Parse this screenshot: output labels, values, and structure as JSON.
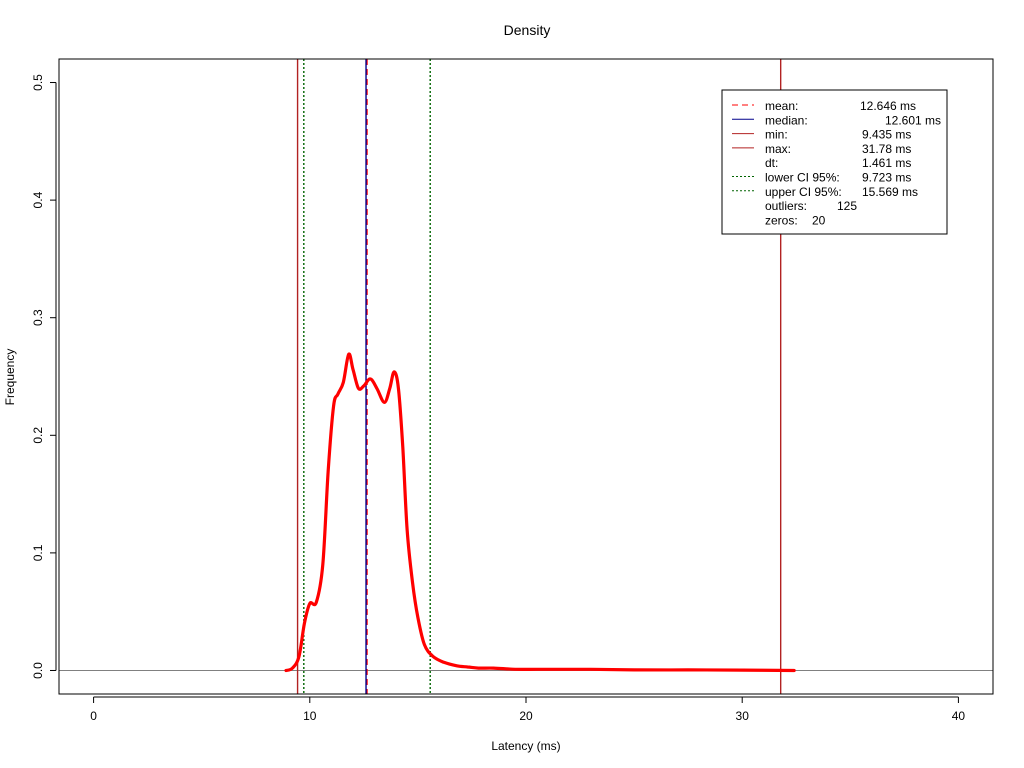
{
  "chart_data": {
    "type": "line",
    "title": "Density",
    "xlabel": "Latency (ms)",
    "ylabel": "Frequency",
    "xlim": [
      -1.6,
      41.6
    ],
    "ylim": [
      -0.02,
      0.52
    ],
    "xticks": [
      0,
      10,
      20,
      30,
      40
    ],
    "yticks": [
      0.0,
      0.1,
      0.2,
      0.3,
      0.4,
      0.5
    ],
    "xtick_labels": [
      "0",
      "10",
      "20",
      "30",
      "40"
    ],
    "ytick_labels": [
      "0.0",
      "0.1",
      "0.2",
      "0.3",
      "0.4",
      "0.5"
    ],
    "grid": false,
    "baseline_y": 0,
    "series": [
      {
        "color": "#ff0000",
        "x": [
          8.9,
          9.2,
          9.5,
          9.75,
          10.0,
          10.3,
          10.6,
          10.85,
          11.1,
          11.3,
          11.55,
          11.8,
          12.0,
          12.25,
          12.5,
          12.8,
          13.1,
          13.45,
          13.7,
          13.9,
          14.1,
          14.3,
          14.5,
          14.75,
          15.0,
          15.3,
          15.7,
          16.2,
          16.8,
          17.3,
          17.8,
          18.5,
          19.5,
          20.5,
          21.5,
          23.0,
          25.0,
          27.5,
          30.0,
          32.4
        ],
        "y": [
          0.0,
          0.002,
          0.012,
          0.04,
          0.057,
          0.058,
          0.09,
          0.17,
          0.225,
          0.235,
          0.245,
          0.269,
          0.256,
          0.24,
          0.242,
          0.248,
          0.24,
          0.228,
          0.24,
          0.254,
          0.24,
          0.19,
          0.12,
          0.075,
          0.045,
          0.022,
          0.012,
          0.007,
          0.004,
          0.003,
          0.002,
          0.002,
          0.001,
          0.001,
          0.001,
          0.001,
          0.0005,
          0.0005,
          0.0003,
          0.0
        ]
      }
    ],
    "vlines": [
      {
        "name": "mean",
        "x": 12.646,
        "color": "#ff0000",
        "style": "dashed"
      },
      {
        "name": "median",
        "x": 12.601,
        "color": "#00008b",
        "style": "solid"
      },
      {
        "name": "min",
        "x": 9.435,
        "color": "#b22222",
        "style": "solid"
      },
      {
        "name": "max",
        "x": 31.78,
        "color": "#b22222",
        "style": "solid"
      },
      {
        "name": "lower CI 95%",
        "x": 9.723,
        "color": "#006400",
        "style": "dotted"
      },
      {
        "name": "upper CI 95%",
        "x": 15.569,
        "color": "#006400",
        "style": "dotted"
      }
    ],
    "legend": {
      "position": "top-right",
      "entries": [
        {
          "label": "mean:",
          "value": "12.646 ms",
          "line_color": "#ff0000",
          "line_style": "dashed"
        },
        {
          "label": "median:",
          "value": "12.601 ms",
          "line_color": "#00008b",
          "line_style": "solid"
        },
        {
          "label": "min:",
          "value": "9.435 ms",
          "line_color": "#b22222",
          "line_style": "solid"
        },
        {
          "label": "max:",
          "value": "31.78 ms",
          "line_color": "#b22222",
          "line_style": "solid"
        },
        {
          "label": "dt:",
          "value": "1.461 ms",
          "line_color": "",
          "line_style": "none"
        },
        {
          "label": "lower CI 95%:",
          "value": "9.723 ms",
          "line_color": "#006400",
          "line_style": "dotted"
        },
        {
          "label": "upper CI 95%:",
          "value": "15.569 ms",
          "line_color": "#006400",
          "line_style": "dotted"
        },
        {
          "label": "outliers:",
          "value": "125",
          "line_color": "",
          "line_style": "none"
        },
        {
          "label": "zeros:",
          "value": "20",
          "line_color": "",
          "line_style": "none"
        }
      ]
    }
  }
}
